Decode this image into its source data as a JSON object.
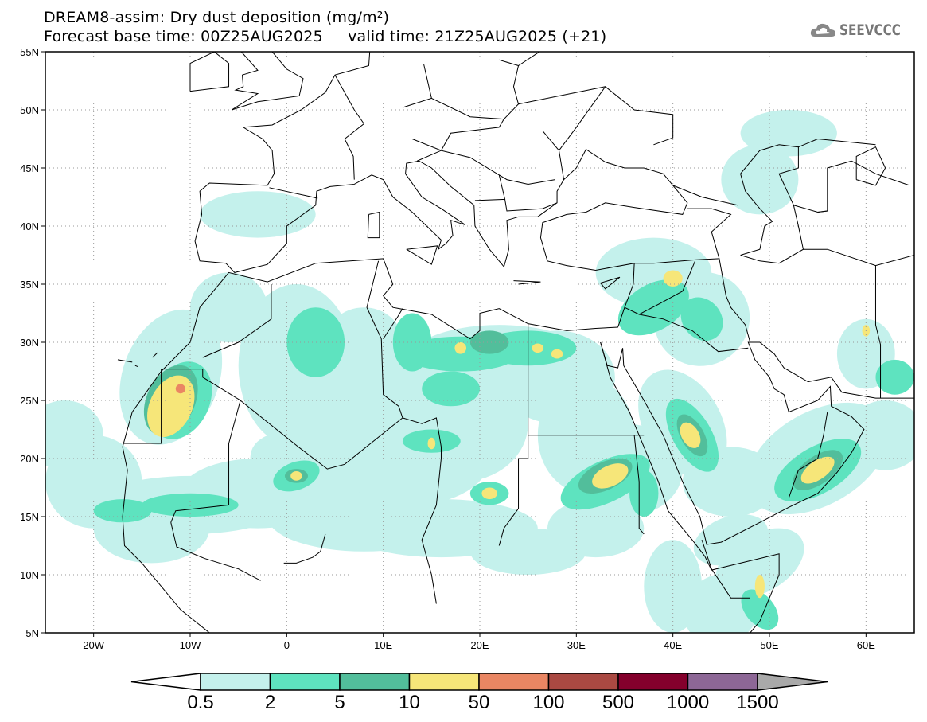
{
  "header": {
    "title": "DREAM8-assim: Dry dust deposition (mg/m²)",
    "subtitle": "Forecast base time: 00Z25AUG2025     valid time: 21Z25AUG2025 (+21)",
    "logo": "SEEVCCC"
  },
  "map": {
    "lon_range": [
      -25,
      65
    ],
    "lat_range": [
      5,
      55
    ],
    "lat_labels": [
      "55N",
      "50N",
      "45N",
      "40N",
      "35N",
      "30N",
      "25N",
      "20N",
      "15N",
      "10N",
      "5N"
    ],
    "lon_labels": [
      "20W",
      "10W",
      "0",
      "10E",
      "20E",
      "30E",
      "40E",
      "50E",
      "60E"
    ]
  },
  "colorbar": {
    "labels": [
      "0.5",
      "2",
      "5",
      "10",
      "50",
      "100",
      "500",
      "1000",
      "1500"
    ],
    "colors": [
      "#c4f1ec",
      "#5ee3bf",
      "#52be9b",
      "#f6e679",
      "#ea8663",
      "#aa4942",
      "#84002c",
      "#8d6796",
      "#a9a9a9"
    ]
  }
}
